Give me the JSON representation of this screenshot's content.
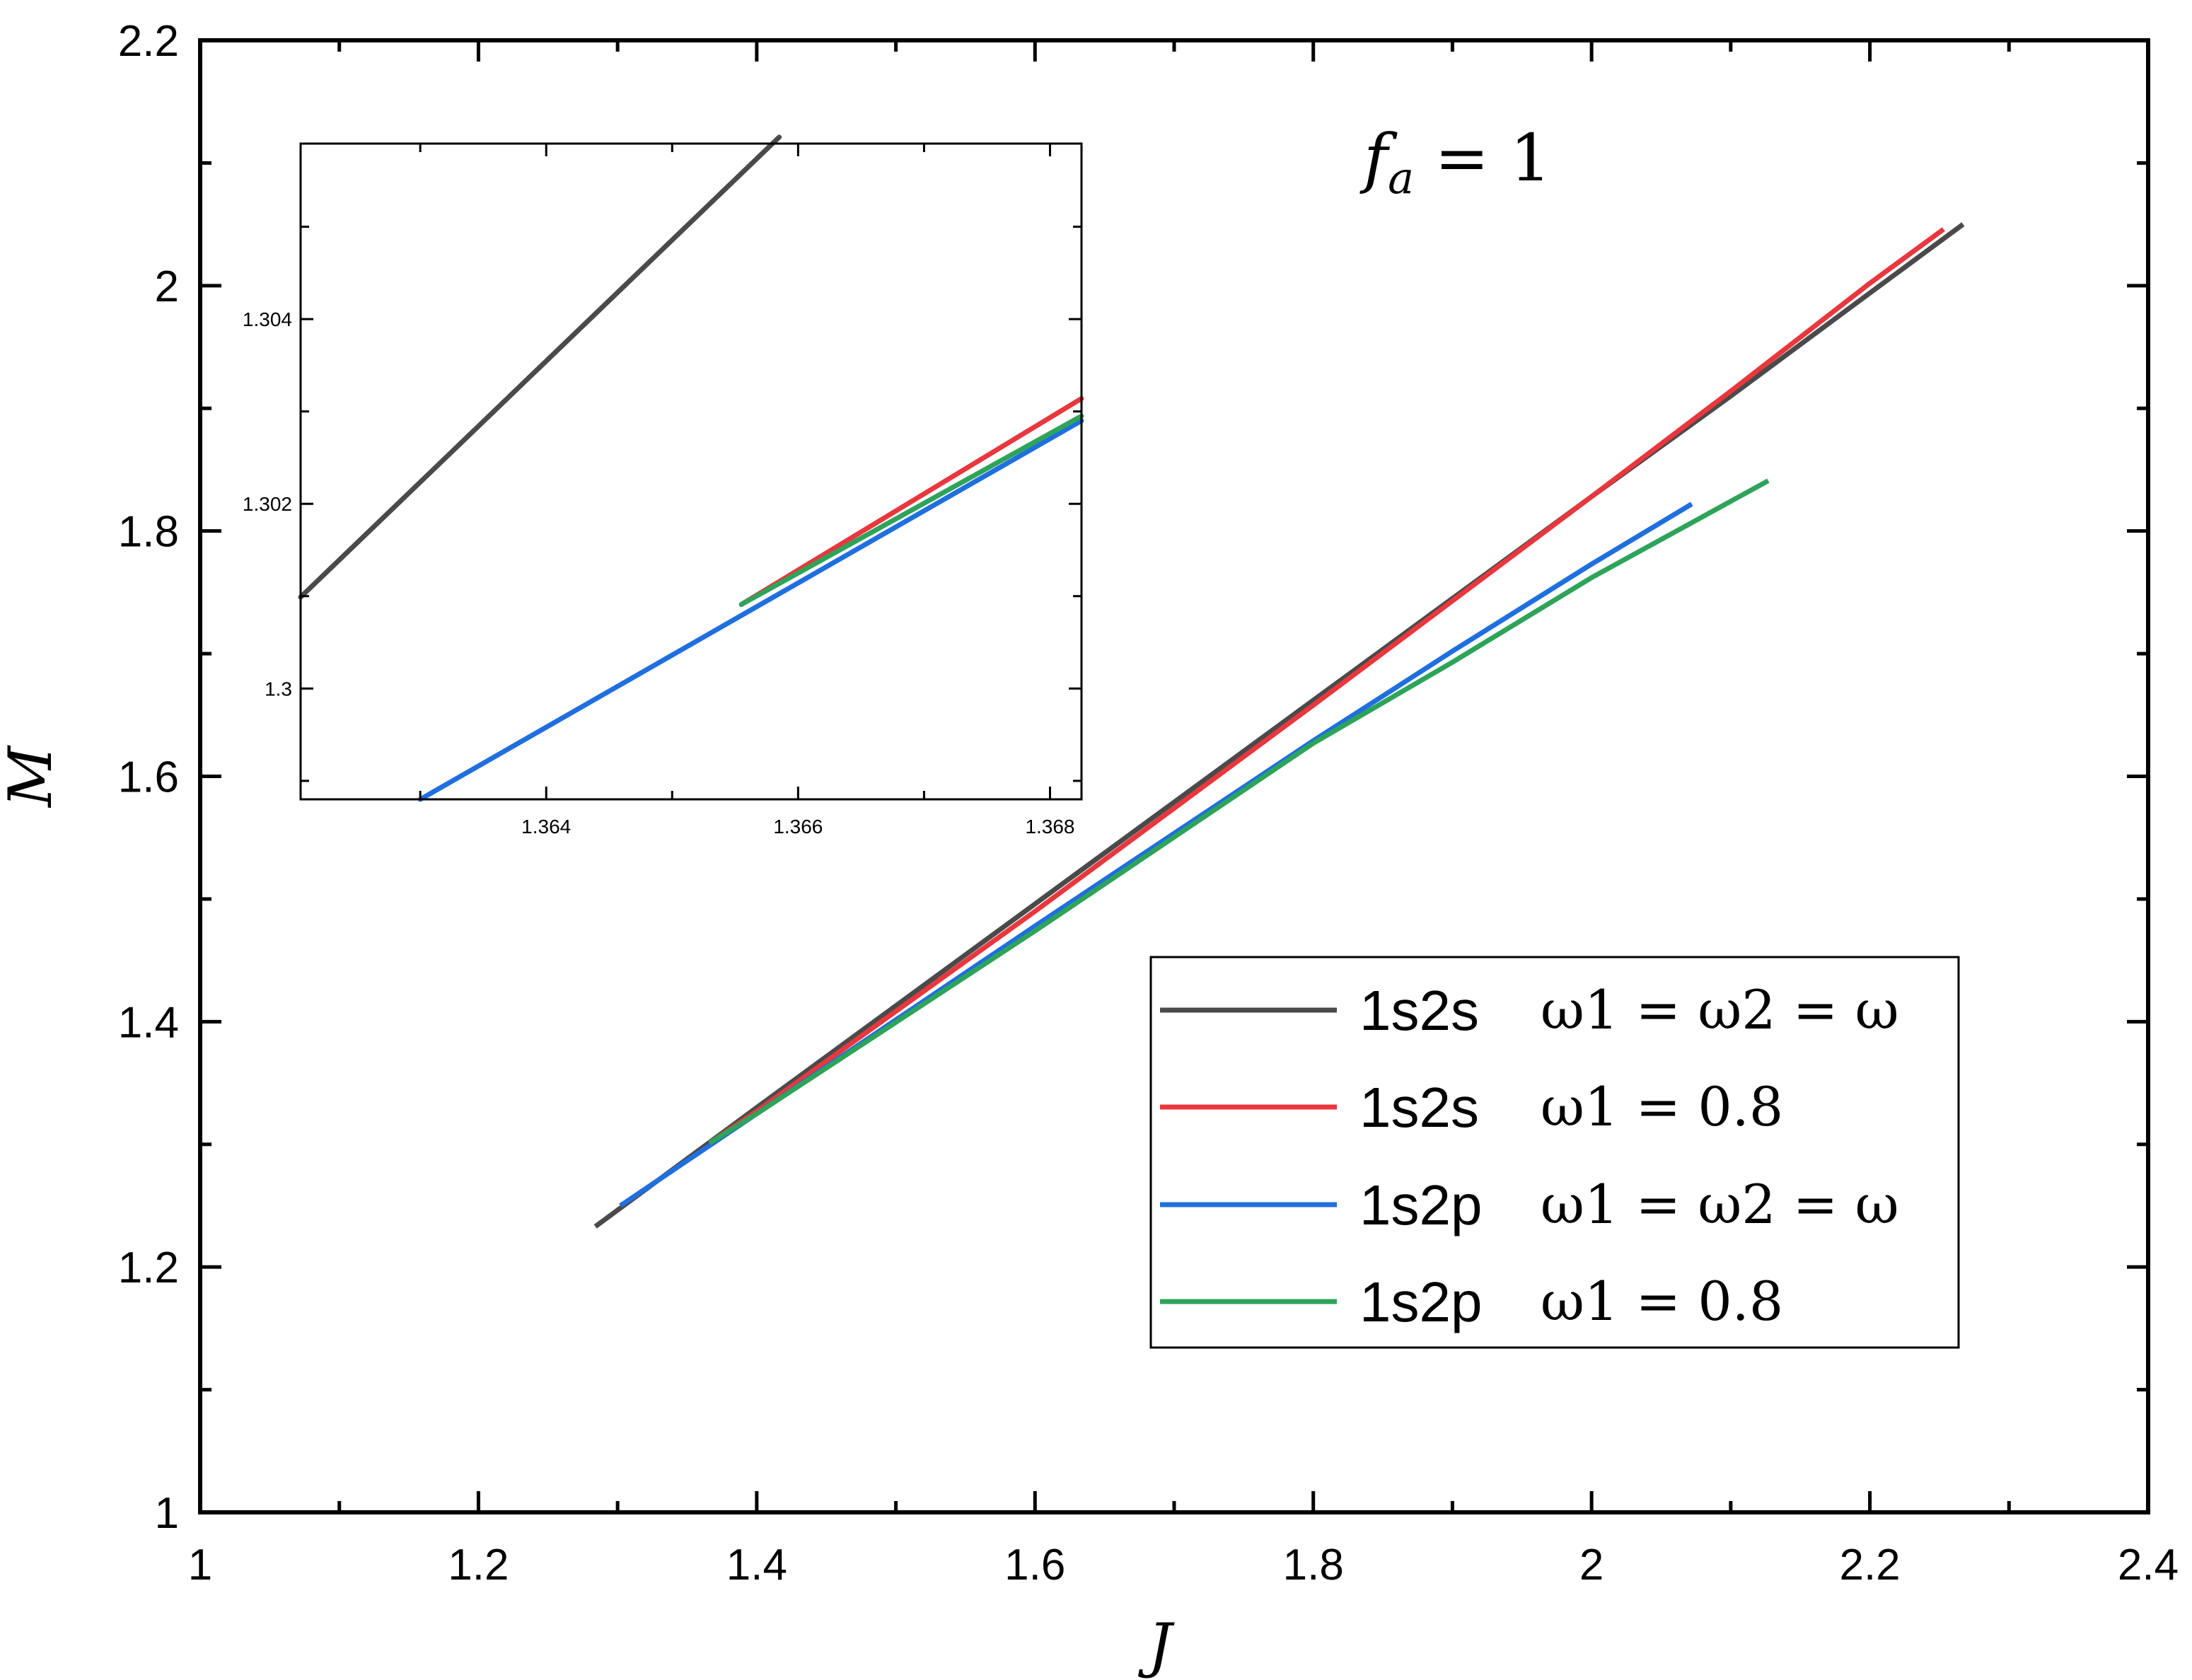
{
  "chart_data": {
    "type": "line",
    "xlabel": "J",
    "ylabel": "M",
    "xlim": [
      1,
      2.4
    ],
    "ylim": [
      1,
      2.2
    ],
    "x_ticks": [
      "1",
      "1.2",
      "1.4",
      "1.6",
      "1.8",
      "2",
      "2.2",
      "2.4"
    ],
    "y_ticks": [
      "1",
      "1.2",
      "1.4",
      "1.6",
      "1.8",
      "2",
      "2.2"
    ],
    "grid": false,
    "legend_position": "lower-right",
    "annotation": {
      "symbol": "f",
      "subscript": "a",
      "relation": " = 1"
    },
    "series": [
      {
        "name": "1s2s",
        "equation": "ω1 = ω2 = ω",
        "color": "#4a4a4a",
        "x": [
          1.284,
          1.4,
          1.6,
          1.8,
          2.0,
          2.1,
          2.2,
          2.267
        ],
        "y": [
          1.233,
          1.33,
          1.496,
          1.662,
          1.828,
          1.91,
          1.994,
          2.05
        ]
      },
      {
        "name": "1s2s",
        "equation": "ω1 = 0.8",
        "color": "#e8373d",
        "x": [
          1.366,
          1.4,
          1.6,
          1.8,
          2.0,
          2.1,
          2.2,
          2.253
        ],
        "y": [
          1.301,
          1.327,
          1.49,
          1.658,
          1.828,
          1.914,
          2.002,
          2.046
        ]
      },
      {
        "name": "1s2p",
        "equation": "ω1 = ω2 = ω",
        "color": "#1f6fdf",
        "x": [
          1.302,
          1.4,
          1.6,
          1.8,
          1.9,
          2.0,
          2.072
        ],
        "y": [
          1.25,
          1.325,
          1.478,
          1.629,
          1.702,
          1.773,
          1.822
        ]
      },
      {
        "name": "1s2p",
        "equation": "ω1 = 0.8",
        "color": "#2ea35a",
        "x": [
          1.366,
          1.4,
          1.6,
          1.8,
          1.9,
          2.0,
          2.127
        ],
        "y": [
          1.301,
          1.325,
          1.474,
          1.627,
          1.693,
          1.762,
          1.841
        ]
      }
    ],
    "inset": {
      "xlim": [
        1.36205,
        1.36825
      ],
      "ylim": [
        1.2988,
        1.3059
      ],
      "x_ticks": [
        "1.364",
        "1.366",
        "1.368"
      ],
      "y_ticks": [
        "1.3",
        "1.302",
        "1.304"
      ],
      "series": [
        {
          "color": "#4a4a4a",
          "x": [
            1.36205,
            1.36585
          ],
          "y": [
            1.30099,
            1.30597
          ]
        },
        {
          "color": "#e8373d",
          "x": [
            1.36555,
            1.36825
          ],
          "y": [
            1.30091,
            1.30314
          ]
        },
        {
          "color": "#1f6fdf",
          "x": [
            1.363,
            1.36825
          ],
          "y": [
            1.2988,
            1.3029
          ]
        },
        {
          "color": "#2ea35a",
          "x": [
            1.36555,
            1.36825
          ],
          "y": [
            1.30091,
            1.30295
          ]
        }
      ]
    }
  }
}
